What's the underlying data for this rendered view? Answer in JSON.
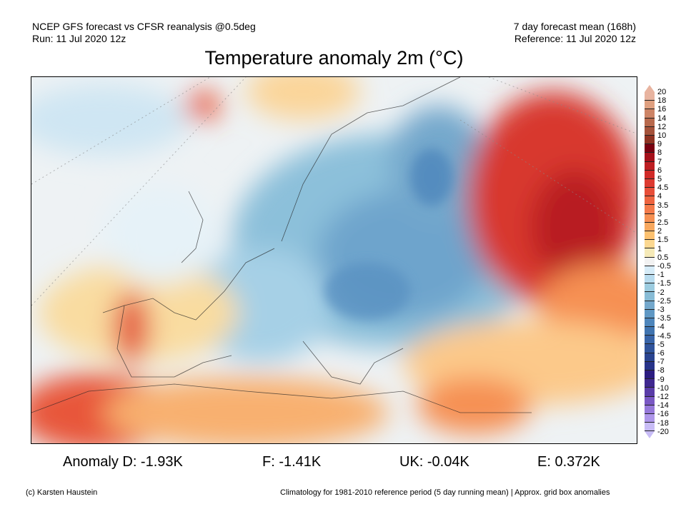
{
  "header": {
    "left_line1": "NCEP GFS forecast vs CFSR reanalysis @0.5deg",
    "left_line2": "Run: 11 Jul 2020 12z",
    "right_line1": "7 day forecast mean (168h)",
    "right_line2": "Reference: 11 Jul 2020 12z",
    "title": "Temperature anomaly 2m (°C)"
  },
  "anomalies": {
    "d": "Anomaly D: -1.93K",
    "f": "F: -1.41K",
    "uk": "UK: -0.04K",
    "e": "E: 0.372K"
  },
  "footer": {
    "credit": "(c) Karsten Haustein",
    "note": "Climatology for 1981-2010 reference period (5 day running mean) | Approx. grid box anomalies"
  },
  "colorbar": {
    "labels": [
      "20",
      "18",
      "16",
      "14",
      "12",
      "10",
      "9",
      "8",
      "7",
      "6",
      "5",
      "4.5",
      "4",
      "3.5",
      "3",
      "2.5",
      "2",
      "1.5",
      "1",
      "0.5",
      "-0.5",
      "-1",
      "-1.5",
      "-2",
      "-2.5",
      "-3",
      "-3.5",
      "-4",
      "-4.5",
      "-5",
      "-6",
      "-7",
      "-8",
      "-9",
      "-10",
      "-12",
      "-14",
      "-16",
      "-18",
      "-20"
    ],
    "colors": [
      "#e8b4a0",
      "#dfa080",
      "#cd8466",
      "#b8694c",
      "#a5523a",
      "#8f3322",
      "#7a0010",
      "#a5101a",
      "#be1e22",
      "#d02a28",
      "#dd3a30",
      "#e84e38",
      "#ee6440",
      "#f47a4a",
      "#f69052",
      "#f8a85e",
      "#fcc170",
      "#fcd890",
      "#f6eab8",
      "#f2f2f2",
      "#d6ecf8",
      "#b8dcef",
      "#9ccce0",
      "#88bcd6",
      "#74a8cc",
      "#6098c4",
      "#4e86bc",
      "#4074b0",
      "#3864a8",
      "#30549c",
      "#2a4490",
      "#28348a",
      "#2c1c80",
      "#402890",
      "#5a3ca8",
      "#7a58c4",
      "#9678da",
      "#ae96ea",
      "#c8bcf6"
    ]
  }
}
